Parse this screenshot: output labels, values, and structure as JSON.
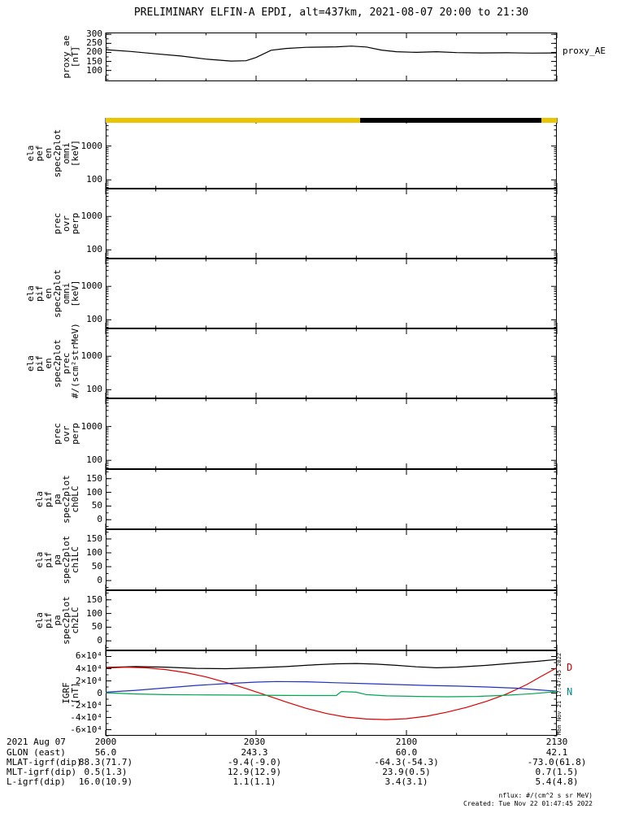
{
  "title": "PRELIMINARY ELFIN-A EPDI, alt=437km, 2021-08-07 20:00 to 21:30",
  "right_labels": {
    "proxy_ae": "proxy_AE"
  },
  "xaxis": {
    "date_label": "2021 Aug 07",
    "tick_labels": [
      "2000",
      "2030",
      "2100",
      "2130"
    ],
    "tick_minutes": [
      0,
      30,
      60,
      90
    ],
    "minor_tick_minutes": [
      10,
      20,
      40,
      50,
      70,
      80
    ],
    "xlim_minutes": [
      0,
      90
    ]
  },
  "footer": {
    "rows": [
      {
        "label": "GLON (east)",
        "values": [
          "56.0",
          "243.3",
          "60.0",
          "42.1"
        ]
      },
      {
        "label": "MLAT-igrf(dip)",
        "values": [
          "88.3(71.7)",
          "-9.4(-9.0)",
          "-64.3(-54.3)",
          "-73.0(61.8)"
        ]
      },
      {
        "label": "MLT-igrf(dip)",
        "values": [
          "0.5(1.3)",
          "12.9(12.9)",
          "23.9(0.5)",
          "0.7(1.5)"
        ]
      },
      {
        "label": "L-igrf(dip)",
        "values": [
          "16.0(10.9)",
          "1.1(1.1)",
          "3.4(3.1)",
          "5.4(4.8)"
        ]
      }
    ],
    "note_nflux": "nflux: #/(cm^2 s sr MeV)",
    "note_created": "Created: Tue Nov 22 01:47:45 2022",
    "side_timestamp": "Mon Nov 21 17:47:45 2022"
  },
  "chart_data": [
    {
      "id": "proxy-ae",
      "type": "line",
      "ylabel_lines": [
        "proxy_ae",
        "[nT]"
      ],
      "ylog": false,
      "ylim": [
        40,
        310
      ],
      "yticks": [
        {
          "v": 300,
          "label": "300"
        },
        {
          "v": 250,
          "label": "250"
        },
        {
          "v": 200,
          "label": "200"
        },
        {
          "v": 150,
          "label": "150"
        },
        {
          "v": 100,
          "label": "100"
        }
      ],
      "series": [
        {
          "name": "proxy_AE",
          "color": "#000000",
          "points": [
            [
              0,
              215
            ],
            [
              5,
              205
            ],
            [
              10,
              192
            ],
            [
              15,
              180
            ],
            [
              20,
              163
            ],
            [
              25,
              152
            ],
            [
              28,
              154
            ],
            [
              30,
              172
            ],
            [
              33,
              212
            ],
            [
              36,
              222
            ],
            [
              40,
              228
            ],
            [
              46,
              231
            ],
            [
              49,
              235
            ],
            [
              52,
              230
            ],
            [
              55,
              213
            ],
            [
              58,
              204
            ],
            [
              62,
              200
            ],
            [
              66,
              204
            ],
            [
              70,
              199
            ],
            [
              75,
              197
            ],
            [
              80,
              198
            ],
            [
              85,
              196
            ],
            [
              90,
              197
            ]
          ]
        }
      ]
    },
    {
      "id": "ela-pef-en-spec2plot-omni",
      "type": "spectrogram",
      "ylabel_lines": [
        "ela",
        "pef",
        "en",
        "spec2plot",
        "omni",
        "[keV]"
      ],
      "ylog": true,
      "ylim": [
        55,
        6800
      ],
      "yticks": [
        {
          "v": 1000,
          "label": "1000"
        },
        {
          "v": 100,
          "label": "100"
        }
      ],
      "top_bar": [
        {
          "color": "#e9c400",
          "from": 0,
          "to": 0.564
        },
        {
          "color": "#000000",
          "from": 0.564,
          "to": 0.966
        },
        {
          "color": "#e9c400",
          "from": 0.966,
          "to": 1.0
        }
      ],
      "series": []
    },
    {
      "id": "pef-prec-ovr-perp",
      "type": "spectrogram",
      "ylabel_lines": [
        "prec",
        "ovr",
        "perp"
      ],
      "ylog": true,
      "ylim": [
        55,
        6800
      ],
      "yticks": [
        {
          "v": 1000,
          "label": "1000"
        },
        {
          "v": 100,
          "label": "100"
        }
      ],
      "series": []
    },
    {
      "id": "ela-pif-en-spec2plot-omni",
      "type": "spectrogram",
      "ylabel_lines": [
        "ela",
        "pif",
        "en",
        "spec2plot",
        "omni",
        "[keV]"
      ],
      "ylog": true,
      "ylim": [
        55,
        6800
      ],
      "yticks": [
        {
          "v": 1000,
          "label": "1000"
        },
        {
          "v": 100,
          "label": "100"
        }
      ],
      "series": []
    },
    {
      "id": "ela-pif-en-spec2plot-prec",
      "type": "spectrogram",
      "ylabel_lines": [
        "ela",
        "pif",
        "en",
        "spec2plot",
        "prec",
        "#/(scm²strMeV)"
      ],
      "ylog": true,
      "ylim": [
        55,
        6800
      ],
      "yticks": [
        {
          "v": 1000,
          "label": "1000"
        },
        {
          "v": 100,
          "label": "100"
        }
      ],
      "series": []
    },
    {
      "id": "pif-prec-ovr-perp",
      "type": "spectrogram",
      "ylabel_lines": [
        "prec",
        "ovr",
        "perp"
      ],
      "ylog": true,
      "ylim": [
        55,
        6800
      ],
      "yticks": [
        {
          "v": 1000,
          "label": "1000"
        },
        {
          "v": 100,
          "label": "100"
        }
      ],
      "series": []
    },
    {
      "id": "ela-pif-pa-spec2plot-ch0LC",
      "type": "spectrogram",
      "ylabel_lines": [
        "ela",
        "pif",
        "pa",
        "spec2plot",
        "ch0LC"
      ],
      "ylog": false,
      "ylim": [
        -35,
        185
      ],
      "yticks": [
        {
          "v": 150,
          "label": "150"
        },
        {
          "v": 100,
          "label": "100"
        },
        {
          "v": 50,
          "label": "50"
        },
        {
          "v": 0,
          "label": "0"
        }
      ],
      "series": []
    },
    {
      "id": "ela-pif-pa-spec2plot-ch1LC",
      "type": "spectrogram",
      "ylabel_lines": [
        "ela",
        "pif",
        "pa",
        "spec2plot",
        "ch1LC"
      ],
      "ylog": false,
      "ylim": [
        -35,
        185
      ],
      "yticks": [
        {
          "v": 150,
          "label": "150"
        },
        {
          "v": 100,
          "label": "100"
        },
        {
          "v": 50,
          "label": "50"
        },
        {
          "v": 0,
          "label": "0"
        }
      ],
      "series": []
    },
    {
      "id": "ela-pif-pa-spec2plot-ch2LC",
      "type": "spectrogram",
      "ylabel_lines": [
        "ela",
        "pif",
        "pa",
        "spec2plot",
        "ch2LC"
      ],
      "ylog": false,
      "ylim": [
        -35,
        185
      ],
      "yticks": [
        {
          "v": 150,
          "label": "150"
        },
        {
          "v": 100,
          "label": "100"
        },
        {
          "v": 50,
          "label": "50"
        },
        {
          "v": 0,
          "label": "0"
        }
      ],
      "series": []
    },
    {
      "id": "igrf",
      "type": "line",
      "ylabel_lines": [
        "IGRF",
        "[nT]"
      ],
      "ylog": false,
      "ylim": [
        -70000,
        70000
      ],
      "yticks": [
        {
          "v": 60000,
          "label": "6×10⁴"
        },
        {
          "v": 40000,
          "label": "4×10⁴"
        },
        {
          "v": 20000,
          "label": "2×10⁴"
        },
        {
          "v": 0,
          "label": "0"
        },
        {
          "v": -20000,
          "label": "-2×10⁴"
        },
        {
          "v": -40000,
          "label": "-4×10⁴"
        },
        {
          "v": -60000,
          "label": "-6×10⁴"
        }
      ],
      "series": [
        {
          "name": "B",
          "color": "#000000",
          "points": [
            [
              0,
              42000
            ],
            [
              6,
              43500
            ],
            [
              12,
              42500
            ],
            [
              18,
              40500
            ],
            [
              24,
              40000
            ],
            [
              30,
              41500
            ],
            [
              36,
              43500
            ],
            [
              42,
              46500
            ],
            [
              46,
              48000
            ],
            [
              50,
              48500
            ],
            [
              54,
              47500
            ],
            [
              58,
              45500
            ],
            [
              62,
              43000
            ],
            [
              66,
              41500
            ],
            [
              70,
              42500
            ],
            [
              76,
              45500
            ],
            [
              82,
              49500
            ],
            [
              86,
              52000
            ],
            [
              90,
              55000
            ]
          ]
        },
        {
          "name": "D",
          "color": "#dd0000",
          "points": [
            [
              0,
              41000
            ],
            [
              4,
              42500
            ],
            [
              8,
              41500
            ],
            [
              12,
              38500
            ],
            [
              16,
              33500
            ],
            [
              20,
              26500
            ],
            [
              24,
              17500
            ],
            [
              28,
              7500
            ],
            [
              32,
              -3500
            ],
            [
              36,
              -14500
            ],
            [
              40,
              -25000
            ],
            [
              44,
              -33500
            ],
            [
              48,
              -39500
            ],
            [
              52,
              -42500
            ],
            [
              56,
              -43500
            ],
            [
              60,
              -42000
            ],
            [
              64,
              -38000
            ],
            [
              68,
              -31500
            ],
            [
              72,
              -23500
            ],
            [
              76,
              -13500
            ],
            [
              80,
              -1500
            ],
            [
              84,
              14000
            ],
            [
              87,
              28000
            ],
            [
              90,
              41500
            ]
          ]
        },
        {
          "name": "N",
          "color": "#2233bb",
          "points": [
            [
              0,
              1500
            ],
            [
              6,
              4500
            ],
            [
              12,
              8500
            ],
            [
              18,
              12500
            ],
            [
              24,
              15500
            ],
            [
              30,
              18000
            ],
            [
              34,
              19000
            ],
            [
              40,
              18500
            ],
            [
              46,
              17000
            ],
            [
              52,
              15500
            ],
            [
              58,
              14000
            ],
            [
              64,
              12500
            ],
            [
              70,
              11500
            ],
            [
              76,
              10000
            ],
            [
              82,
              8000
            ],
            [
              86,
              5500
            ],
            [
              90,
              3000
            ]
          ]
        },
        {
          "name": "E",
          "color": "#00a651",
          "points": [
            [
              0,
              500
            ],
            [
              6,
              -1500
            ],
            [
              12,
              -2500
            ],
            [
              18,
              -3000
            ],
            [
              24,
              -3200
            ],
            [
              30,
              -3500
            ],
            [
              36,
              -3800
            ],
            [
              42,
              -4000
            ],
            [
              46,
              -4000
            ],
            [
              47,
              2500
            ],
            [
              50,
              1500
            ],
            [
              52,
              -2500
            ],
            [
              56,
              -4500
            ],
            [
              62,
              -5500
            ],
            [
              68,
              -6000
            ],
            [
              74,
              -5500
            ],
            [
              80,
              -3500
            ],
            [
              85,
              -1000
            ],
            [
              90,
              2500
            ]
          ]
        }
      ],
      "right_labels": [
        {
          "text": "D",
          "color": "#cc0000"
        },
        {
          "text": "N",
          "color": "#008888"
        }
      ]
    }
  ]
}
